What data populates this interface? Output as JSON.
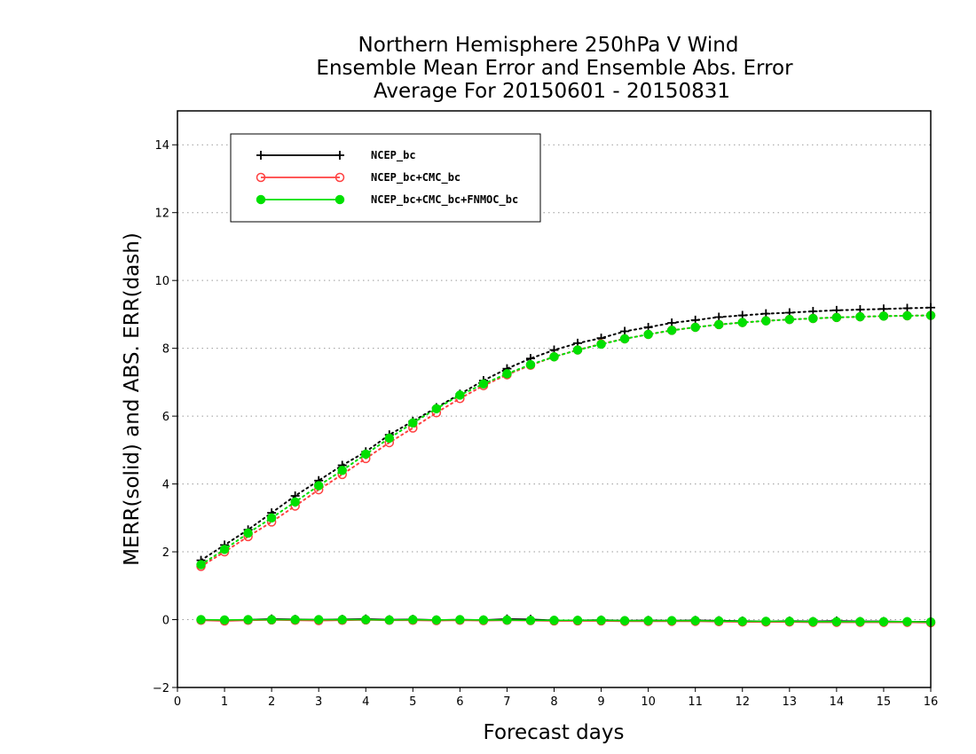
{
  "chart_data": {
    "type": "line",
    "title_lines": [
      "Northern Hemisphere 250hPa V Wind",
      "Ensemble Mean Error and Ensemble Abs. Error",
      "Average For 20150601 - 20150831"
    ],
    "xlabel": "Forecast days",
    "ylabel": "MERR(solid) and ABS. ERR(dash)",
    "xlim": [
      0,
      16
    ],
    "ylim": [
      -2,
      15
    ],
    "xticks": [
      "0",
      "1",
      "2",
      "3",
      "4",
      "5",
      "6",
      "7",
      "8",
      "9",
      "10",
      "11",
      "12",
      "13",
      "14",
      "15",
      "16"
    ],
    "yticks": [
      "−2",
      "0",
      "2",
      "4",
      "6",
      "8",
      "10",
      "12",
      "14"
    ],
    "grid": true,
    "legend_position": "top-left",
    "x": [
      0.5,
      1,
      1.5,
      2,
      2.5,
      3,
      3.5,
      4,
      4.5,
      5,
      5.5,
      6,
      6.5,
      7,
      7.5,
      8,
      8.5,
      9,
      9.5,
      10,
      10.5,
      11,
      11.5,
      12,
      12.5,
      13,
      13.5,
      14,
      14.5,
      15,
      15.5,
      16
    ],
    "series": [
      {
        "name": "NCEP_bc",
        "color": "#000000",
        "marker": "plus",
        "abs_err": [
          1.75,
          2.2,
          2.65,
          3.15,
          3.65,
          4.1,
          4.55,
          4.95,
          5.45,
          5.85,
          6.25,
          6.65,
          7.05,
          7.4,
          7.7,
          7.95,
          8.15,
          8.3,
          8.5,
          8.62,
          8.75,
          8.83,
          8.92,
          8.97,
          9.02,
          9.05,
          9.09,
          9.12,
          9.14,
          9.16,
          9.18,
          9.2
        ],
        "mean_err": [
          0.0,
          -0.03,
          0.0,
          0.02,
          0.01,
          0.0,
          0.01,
          0.02,
          0.0,
          0.01,
          -0.01,
          0.0,
          -0.01,
          0.02,
          0.01,
          -0.02,
          -0.02,
          -0.01,
          -0.03,
          -0.02,
          -0.03,
          -0.02,
          -0.03,
          -0.04,
          -0.05,
          -0.04,
          -0.05,
          -0.04,
          -0.05,
          -0.05,
          -0.06,
          -0.06
        ]
      },
      {
        "name": "NCEP_bc+CMC_bc",
        "color": "#ff4040",
        "marker": "open-circle",
        "abs_err": [
          1.57,
          2.0,
          2.45,
          2.88,
          3.35,
          3.83,
          4.28,
          4.75,
          5.22,
          5.65,
          6.1,
          6.52,
          6.9,
          7.22,
          7.5,
          7.75,
          7.95,
          8.13,
          8.28,
          8.41,
          8.53,
          8.62,
          8.7,
          8.76,
          8.81,
          8.85,
          8.88,
          8.91,
          8.93,
          8.95,
          8.96,
          8.97
        ],
        "mean_err": [
          -0.02,
          -0.04,
          -0.02,
          -0.01,
          -0.02,
          -0.03,
          -0.02,
          -0.01,
          -0.02,
          -0.02,
          -0.03,
          -0.02,
          -0.03,
          -0.02,
          -0.03,
          -0.04,
          -0.04,
          -0.04,
          -0.05,
          -0.05,
          -0.05,
          -0.05,
          -0.06,
          -0.07,
          -0.07,
          -0.07,
          -0.08,
          -0.08,
          -0.08,
          -0.08,
          -0.08,
          -0.09
        ]
      },
      {
        "name": "NCEP_bc+CMC_bc+FNMOC_bc",
        "color": "#00e000",
        "marker": "filled-circle",
        "abs_err": [
          1.62,
          2.07,
          2.55,
          3.0,
          3.47,
          3.95,
          4.4,
          4.88,
          5.35,
          5.8,
          6.22,
          6.62,
          6.95,
          7.25,
          7.52,
          7.75,
          7.95,
          8.12,
          8.28,
          8.41,
          8.53,
          8.62,
          8.7,
          8.76,
          8.81,
          8.85,
          8.88,
          8.91,
          8.93,
          8.95,
          8.96,
          8.97
        ],
        "mean_err": [
          0.0,
          -0.01,
          0.0,
          0.0,
          0.0,
          0.0,
          0.0,
          0.0,
          -0.01,
          0.0,
          -0.01,
          0.0,
          -0.01,
          -0.01,
          -0.02,
          -0.02,
          -0.02,
          -0.02,
          -0.03,
          -0.03,
          -0.03,
          -0.03,
          -0.04,
          -0.05,
          -0.05,
          -0.05,
          -0.06,
          -0.06,
          -0.06,
          -0.06,
          -0.06,
          -0.07
        ]
      }
    ]
  }
}
